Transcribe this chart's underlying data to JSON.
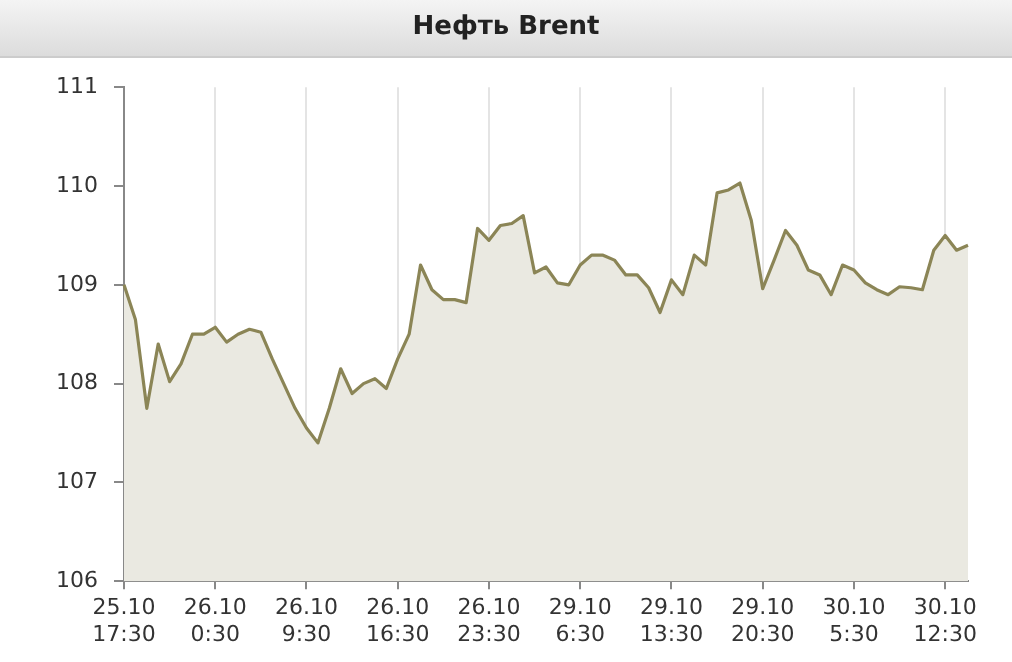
{
  "chart_data": {
    "type": "area",
    "title": "Нефть Brent",
    "categories": [
      "25.10 17:30",
      null,
      null,
      null,
      null,
      null,
      null,
      null,
      "26.10 0:30",
      null,
      null,
      null,
      null,
      null,
      null,
      null,
      "26.10 9:30",
      null,
      null,
      null,
      null,
      null,
      null,
      null,
      "26.10 16:30",
      null,
      null,
      null,
      null,
      null,
      null,
      null,
      "26.10 23:30",
      null,
      null,
      null,
      null,
      null,
      null,
      null,
      "29.10 6:30",
      null,
      null,
      null,
      null,
      null,
      null,
      null,
      "29.10 13:30",
      null,
      null,
      null,
      null,
      null,
      null,
      null,
      "29.10 20:30",
      null,
      null,
      null,
      null,
      null,
      null,
      null,
      "30.10 5:30",
      null,
      null,
      null,
      null,
      null,
      null,
      null,
      "30.10 12:30",
      null,
      null
    ],
    "series": [
      {
        "color": "#8b8556",
        "values": [
          109.0,
          108.65,
          107.75,
          108.4,
          108.02,
          108.2,
          108.5,
          108.5,
          108.57,
          108.42,
          108.5,
          108.55,
          108.52,
          108.25,
          108.0,
          107.75,
          107.55,
          107.4,
          107.75,
          108.15,
          107.9,
          108.0,
          108.05,
          107.95,
          108.25,
          108.5,
          109.2,
          108.95,
          108.85,
          108.85,
          108.82,
          109.57,
          109.45,
          109.6,
          109.62,
          109.7,
          109.12,
          109.18,
          109.02,
          109.0,
          109.2,
          109.3,
          109.3,
          109.25,
          109.1,
          109.1,
          108.97,
          108.72,
          109.05,
          108.9,
          109.3,
          109.2,
          109.93,
          109.96,
          110.03,
          109.65,
          108.96,
          109.25,
          109.55,
          109.4,
          109.15,
          109.1,
          108.9,
          109.2,
          109.15,
          109.02,
          108.95,
          108.9,
          108.98,
          108.97,
          108.95,
          109.35,
          109.5,
          109.35,
          109.4
        ]
      }
    ],
    "ylim": [
      106,
      111
    ],
    "yticks": [
      106,
      107,
      108,
      109,
      110,
      111
    ],
    "grid": "x",
    "legend": false,
    "marker": "none",
    "line_style": "solid"
  }
}
